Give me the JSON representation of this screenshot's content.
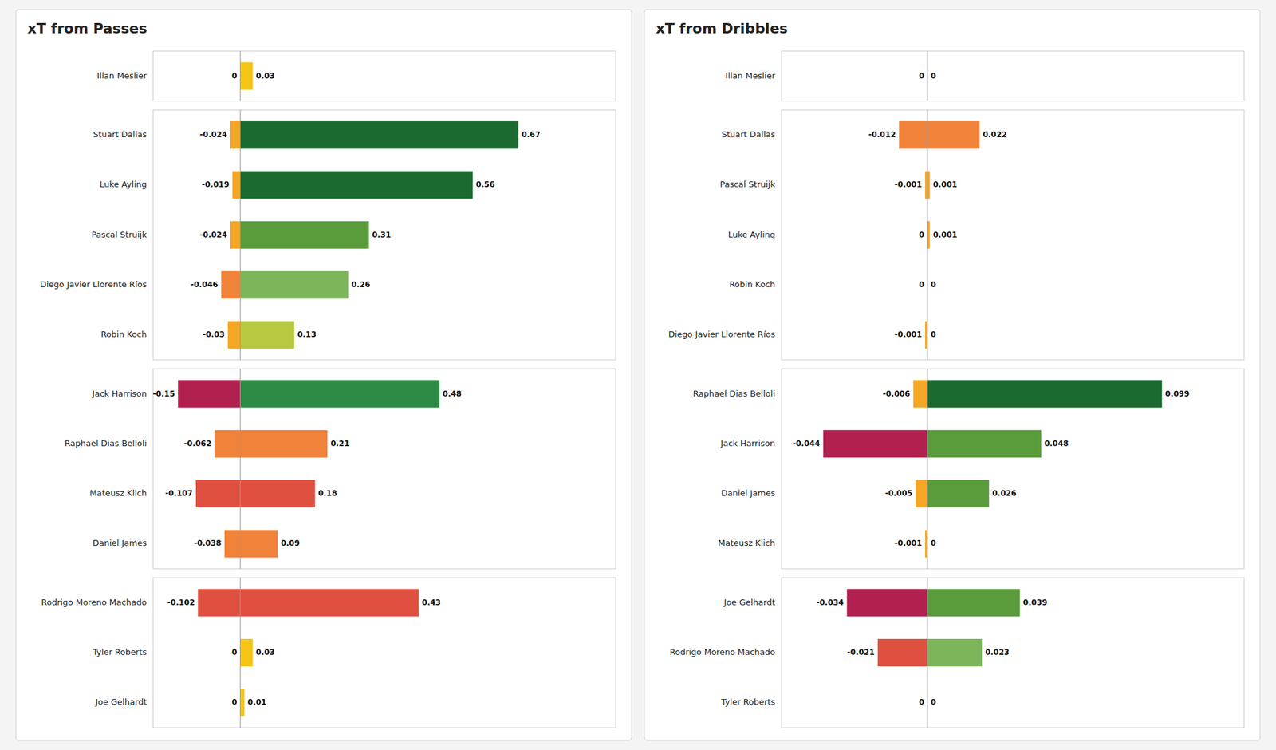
{
  "chart_data": [
    {
      "type": "bar",
      "orientation": "horizontal",
      "title": "xT from Passes",
      "categories": [
        "Illan Meslier",
        "Stuart Dallas",
        "Luke Ayling",
        "Pascal Struijk",
        "Diego Javier Llorente Ríos",
        "Robin Koch",
        "Jack Harrison",
        "Raphael Dias Belloli",
        "Mateusz Klich",
        "Daniel James",
        "Rodrigo Moreno Machado",
        "Tyler Roberts",
        "Joe Gelhardt"
      ],
      "groups": [
        0,
        1,
        1,
        1,
        1,
        1,
        2,
        2,
        2,
        2,
        3,
        3,
        3
      ],
      "series": [
        {
          "values": [
            0,
            -0.024,
            -0.019,
            -0.024,
            -0.046,
            -0.03,
            -0.15,
            -0.062,
            -0.107,
            -0.038,
            -0.102,
            0,
            0
          ],
          "colors": [
            "#F5C518",
            "#F5A623",
            "#F5A623",
            "#F5A623",
            "#F0823A",
            "#F5A623",
            "#B22050",
            "#F0823A",
            "#E05040",
            "#F0823A",
            "#E05040",
            "#F5C518",
            "#F5C518"
          ]
        },
        {
          "values": [
            0.03,
            0.67,
            0.56,
            0.31,
            0.26,
            0.13,
            0.48,
            0.21,
            0.18,
            0.09,
            0.43,
            0.03,
            0.01
          ],
          "colors": [
            "#F5C518",
            "#1B6B30",
            "#1B6B30",
            "#5A9B3C",
            "#7CB55A",
            "#B8C840",
            "#2E8B45",
            "#F0823A",
            "#E05040",
            "#F0823A",
            "#E05040",
            "#F5C518",
            "#F5C518"
          ]
        }
      ],
      "xlim": [
        -0.21,
        0.9045
      ],
      "tick_labels": false,
      "data_labels": true,
      "grid": false
    },
    {
      "type": "bar",
      "orientation": "horizontal",
      "title": "xT from Dribbles",
      "categories": [
        "Illan Meslier",
        "Stuart Dallas",
        "Pascal Struijk",
        "Luke Ayling",
        "Robin Koch",
        "Diego Javier Llorente Ríos",
        "Raphael Dias Belloli",
        "Jack Harrison",
        "Daniel James",
        "Mateusz Klich",
        "Joe Gelhardt",
        "Rodrigo Moreno Machado",
        "Tyler Roberts"
      ],
      "groups": [
        0,
        1,
        1,
        1,
        1,
        1,
        2,
        2,
        2,
        2,
        3,
        3,
        3
      ],
      "series": [
        {
          "values": [
            0,
            -0.012,
            -0.001,
            0,
            0,
            -0.001,
            -0.006,
            -0.044,
            -0.005,
            -0.001,
            -0.034,
            -0.021,
            0
          ],
          "colors": [
            "#F5C518",
            "#F0823A",
            "#F5A623",
            "#F5C518",
            "#F5C518",
            "#F5A623",
            "#F5A623",
            "#B22050",
            "#F5A623",
            "#F5A623",
            "#B22050",
            "#E05040",
            "#F5C518"
          ]
        },
        {
          "values": [
            0,
            0.022,
            0.001,
            0.001,
            0,
            0,
            0.099,
            0.048,
            0.026,
            0,
            0.039,
            0.023,
            0
          ],
          "colors": [
            "#F5C518",
            "#F0823A",
            "#F5A623",
            "#F5A623",
            "#F5C518",
            "#F5C518",
            "#1B6B30",
            "#5A9B3C",
            "#5A9B3C",
            "#F5C518",
            "#5A9B3C",
            "#7CB55A",
            "#F5C518"
          ]
        }
      ],
      "xlim": [
        -0.0616,
        0.13365
      ],
      "tick_labels": false,
      "data_labels": true,
      "grid": false
    }
  ]
}
